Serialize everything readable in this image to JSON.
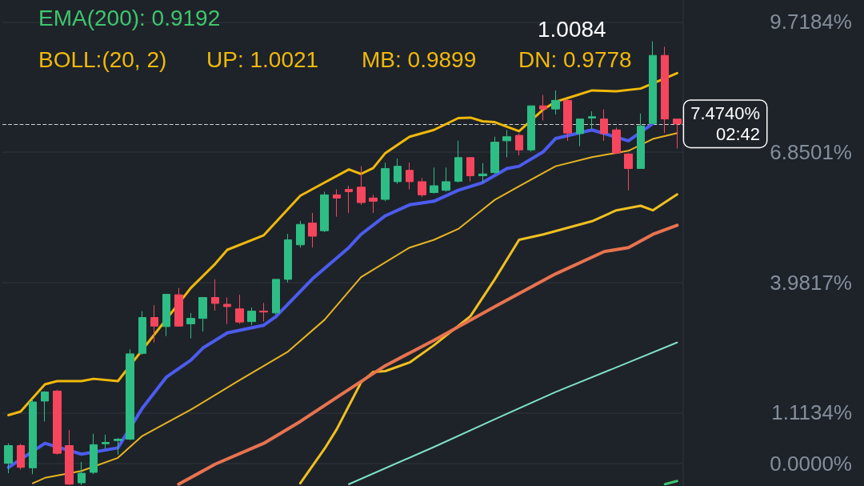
{
  "chart_data": {
    "type": "candlestick",
    "categories": [
      null,
      null,
      null,
      null,
      null,
      null,
      null,
      null,
      null,
      null,
      null,
      null,
      null,
      null,
      null,
      null,
      null,
      null,
      null,
      null,
      null,
      null,
      null,
      null,
      null,
      null,
      null,
      null,
      null,
      null,
      null,
      null,
      null,
      null,
      null,
      null,
      null,
      null,
      null,
      null,
      null,
      null,
      null,
      null,
      null,
      null,
      null,
      null,
      null,
      null,
      null,
      null,
      null,
      null,
      null,
      null
    ],
    "ohlc": [
      [
        0,
        0.44,
        -0.22,
        0.39
      ],
      [
        0.39,
        0.43,
        -0.14,
        -0.09
      ],
      [
        -0.1,
        1.42,
        -0.24,
        1.35
      ],
      [
        1.37,
        1.59,
        0.92,
        1.57
      ],
      [
        1.59,
        1.62,
        0.19,
        0.22
      ],
      [
        0.39,
        0.73,
        -0.48,
        -0.46
      ],
      [
        -0.43,
        0.03,
        -0.48,
        -0.22
      ],
      [
        -0.2,
        0.65,
        -0.24,
        0.41
      ],
      [
        0.43,
        0.63,
        0.32,
        0.46
      ],
      [
        0.5,
        0.56,
        0.19,
        0.53
      ],
      [
        0.53,
        2.51,
        0.51,
        2.41
      ],
      [
        2.42,
        3.35,
        2.39,
        3.21
      ],
      [
        3.21,
        3.48,
        2.66,
        3.02
      ],
      [
        3.01,
        3.72,
        2.8,
        3.72
      ],
      [
        3.71,
        3.86,
        3.01,
        3.02
      ],
      [
        3.07,
        3.31,
        2.75,
        3.19
      ],
      [
        3.19,
        3.65,
        2.9,
        3.65
      ],
      [
        3.65,
        4.05,
        3.36,
        3.52
      ],
      [
        3.5,
        3.65,
        3.07,
        3.45
      ],
      [
        3.4,
        3.71,
        3.07,
        3.11
      ],
      [
        3.12,
        3.43,
        3.04,
        3.35
      ],
      [
        3.35,
        3.53,
        3.12,
        3.33
      ],
      [
        3.31,
        4.05,
        3.28,
        4.05
      ],
      [
        4.05,
        5.05,
        3.98,
        4.92
      ],
      [
        4.81,
        5.34,
        4.75,
        5.26
      ],
      [
        5.29,
        5.51,
        4.75,
        5.0
      ],
      [
        5.12,
        5.98,
        5.09,
        5.91
      ],
      [
        5.91,
        6.03,
        5.43,
        5.84
      ],
      [
        6.03,
        6.11,
        5.51,
        5.98
      ],
      [
        6.08,
        6.54,
        5.69,
        5.74
      ],
      [
        5.84,
        5.91,
        5.51,
        5.77
      ],
      [
        5.81,
        6.62,
        5.77,
        6.49
      ],
      [
        6.2,
        6.71,
        6.15,
        6.54
      ],
      [
        6.45,
        6.62,
        6.03,
        6.2
      ],
      [
        6.2,
        6.28,
        5.86,
        5.91
      ],
      [
        5.96,
        6.51,
        5.94,
        6.11
      ],
      [
        6.01,
        6.51,
        5.98,
        6.2
      ],
      [
        6.21,
        7.1,
        6.18,
        6.73
      ],
      [
        6.73,
        6.74,
        6.21,
        6.33
      ],
      [
        6.33,
        6.61,
        6.18,
        6.37
      ],
      [
        6.4,
        7.19,
        6.37,
        7.07
      ],
      [
        7.1,
        7.34,
        6.74,
        7.19
      ],
      [
        7.22,
        7.26,
        6.78,
        6.9
      ],
      [
        6.9,
        7.87,
        6.86,
        7.87
      ],
      [
        7.87,
        8.11,
        7.55,
        7.8
      ],
      [
        7.8,
        8.21,
        7.68,
        7.99
      ],
      [
        7.99,
        8.01,
        7.1,
        7.27
      ],
      [
        7.26,
        7.58,
        6.98,
        7.58
      ],
      [
        7.6,
        7.75,
        7.36,
        7.63
      ],
      [
        7.58,
        7.79,
        7.1,
        7.26
      ],
      [
        7.34,
        7.39,
        6.81,
        6.83
      ],
      [
        6.81,
        6.83,
        6.01,
        6.49
      ],
      [
        6.49,
        7.7,
        6.49,
        7.43
      ],
      [
        7.48,
        9.29,
        7.48,
        8.98
      ],
      [
        8.98,
        9.17,
        7.27,
        7.58
      ],
      [
        7.58,
        7.58,
        6.93,
        7.474
      ]
    ],
    "series": [
      {
        "type": "line",
        "color": "#f0b90b",
        "values": [
          1.06,
          1.14,
          null,
          1.74,
          1.81,
          null,
          1.81,
          1.86,
          null,
          1.81,
          null,
          null,
          null,
          null,
          null,
          3.86,
          null,
          4.39,
          4.7,
          null,
          null,
          5.02,
          null,
          null,
          5.89,
          null,
          6.18,
          null,
          6.47,
          6.37,
          6.5,
          6.83,
          null,
          7.19,
          null,
          7.34,
          null,
          7.6,
          7.61,
          7.53,
          7.51,
          null,
          7.31,
          null,
          7.79,
          7.96,
          8.04,
          null,
          8.21,
          null,
          8.19,
          null,
          8.25,
          null,
          null,
          8.59
        ]
      },
      {
        "type": "line",
        "color": "#4c5cf0",
        "values": [
          -0.09,
          null,
          null,
          0.44,
          null,
          null,
          0.2,
          null,
          null,
          0.34,
          null,
          1.21,
          null,
          1.9,
          null,
          2.27,
          2.54,
          null,
          2.87,
          null,
          null,
          3.04,
          3.23,
          null,
          null,
          4.06,
          null,
          null,
          4.75,
          5.04,
          null,
          5.45,
          null,
          5.69,
          null,
          5.77,
          null,
          6.01,
          null,
          6.18,
          null,
          6.49,
          6.54,
          null,
          6.86,
          7.15,
          null,
          null,
          7.34,
          null,
          null,
          7.1,
          null,
          7.48,
          null,
          null
        ]
      },
      {
        "type": "line",
        "color": "#e6b422",
        "values": [
          null,
          null,
          -0.44,
          -0.32,
          null,
          null,
          -0.17,
          null,
          null,
          0.12,
          null,
          0.6,
          null,
          null,
          null,
          1.18,
          null,
          null,
          null,
          1.83,
          null,
          null,
          null,
          2.46,
          null,
          null,
          3.16,
          null,
          null,
          4.1,
          null,
          null,
          null,
          4.75,
          null,
          4.92,
          null,
          5.16,
          null,
          null,
          5.8,
          null,
          6.1,
          null,
          null,
          6.54,
          null,
          null,
          6.74,
          null,
          null,
          6.88,
          null,
          7.14,
          null,
          7.27
        ]
      },
      {
        "type": "line",
        "color": "#f0c020",
        "values": [
          null,
          null,
          null,
          null,
          null,
          null,
          null,
          null,
          null,
          null,
          null,
          null,
          null,
          null,
          null,
          null,
          null,
          null,
          null,
          null,
          null,
          null,
          null,
          null,
          -0.44,
          null,
          0.32,
          0.75,
          null,
          1.78,
          2.01,
          2.03,
          null,
          2.22,
          null,
          2.6,
          null,
          null,
          3.24,
          null,
          4.05,
          null,
          4.92,
          null,
          5.04,
          null,
          null,
          null,
          5.33,
          null,
          5.57,
          null,
          5.67,
          5.57,
          null,
          5.92
        ]
      },
      {
        "type": "line",
        "color": "#e8734f",
        "values": [
          null,
          null,
          null,
          null,
          null,
          null,
          null,
          null,
          null,
          null,
          null,
          null,
          null,
          null,
          -0.46,
          null,
          null,
          -0.02,
          null,
          null,
          null,
          0.44,
          null,
          null,
          0.92,
          null,
          null,
          1.45,
          null,
          null,
          null,
          2.15,
          null,
          null,
          null,
          2.71,
          null,
          null,
          null,
          null,
          3.45,
          null,
          null,
          null,
          null,
          4.17,
          null,
          null,
          null,
          4.66,
          null,
          4.75,
          null,
          5.04,
          null,
          5.24
        ]
      },
      {
        "type": "line",
        "color": "#7fe0c8",
        "values": [
          null,
          null,
          null,
          null,
          null,
          null,
          null,
          null,
          null,
          null,
          null,
          null,
          null,
          null,
          null,
          null,
          null,
          null,
          null,
          null,
          null,
          null,
          null,
          null,
          null,
          null,
          null,
          null,
          -0.46,
          null,
          null,
          null,
          null,
          null,
          null,
          0.36,
          null,
          null,
          null,
          null,
          0.97,
          null,
          null,
          null,
          null,
          1.57,
          null,
          null,
          null,
          null,
          null,
          2.22,
          null,
          null,
          null,
          2.66
        ]
      },
      {
        "type": "line",
        "color": "#3fc66e",
        "values": [
          null,
          null,
          null,
          null,
          null,
          null,
          null,
          null,
          null,
          null,
          null,
          null,
          null,
          null,
          null,
          null,
          null,
          null,
          null,
          null,
          null,
          null,
          null,
          null,
          null,
          null,
          null,
          null,
          null,
          null,
          null,
          null,
          null,
          null,
          null,
          null,
          null,
          null,
          null,
          null,
          null,
          null,
          null,
          null,
          null,
          null,
          null,
          null,
          null,
          null,
          null,
          null,
          null,
          null,
          -0.46,
          -0.39
        ]
      }
    ],
    "ylim": [
      -0.5,
      10.2
    ],
    "yticks": [
      {
        "value": 0,
        "label": "0.0000%"
      },
      {
        "value": 1.1134,
        "label": "1.1134%"
      },
      {
        "value": 3.9817,
        "label": "3.9817%"
      },
      {
        "value": 6.8501,
        "label": "6.8501%"
      },
      {
        "value": 9.7184,
        "label": "9.7184%"
      }
    ],
    "tick_labels": "y",
    "grid": "y",
    "ref_lines": [
      {
        "axis": "y",
        "value": 7.474,
        "label": "7.4740%",
        "color": "#ffffff",
        "line_style": "dashed"
      }
    ],
    "annotations": [
      "EMA(200): 0.9192",
      "BOLL:(20, 2)",
      "UP: 1.0021",
      "MB: 0.9899",
      "DN: 0.9778",
      "1.0084",
      "02:42"
    ]
  }
}
